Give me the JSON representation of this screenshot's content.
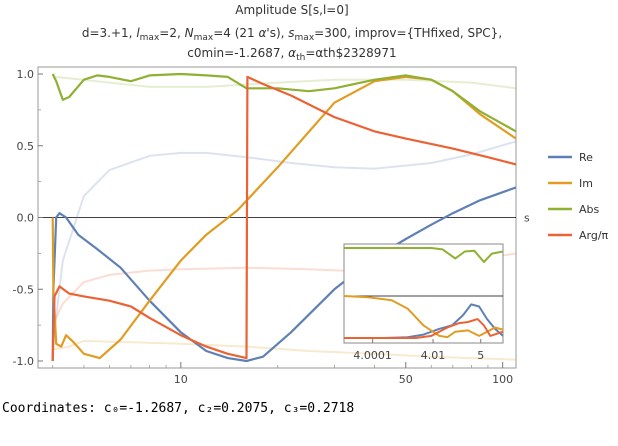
{
  "chart_data": {
    "type": "line",
    "title": "Amplitude S[s,l=0]",
    "subtitle_lines": [
      "d=3.+1, l_max=2, N_max=4 (21 α's), s_max=300, improv={THfixed, SPC},",
      "c0min=-1.2687, α_th=αth$2328971"
    ],
    "xlabel": "s",
    "ylabel": "",
    "x_scale": "log",
    "xlim": [
      3.6,
      110
    ],
    "ylim": [
      -1.05,
      1.05
    ],
    "x_tick_labels": [
      "10",
      "50",
      "100"
    ],
    "y_tick_labels": [
      "1.0",
      "0.5",
      "0.0",
      "-0.5",
      "-1.0"
    ],
    "legend_position": "right",
    "colors": {
      "Re": "#5e81b5",
      "Im": "#e19c24",
      "Abs": "#8fb032",
      "Arg": "#eb6235",
      "zero_line": "#000000"
    },
    "series": [
      {
        "name": "Re",
        "points": [
          [
            4.0001,
            -1.0
          ],
          [
            4.02,
            -0.5
          ],
          [
            4.1,
            0.0
          ],
          [
            4.2,
            0.03
          ],
          [
            4.4,
            0.0
          ],
          [
            4.8,
            -0.12
          ],
          [
            5.5,
            -0.22
          ],
          [
            6.5,
            -0.35
          ],
          [
            8,
            -0.58
          ],
          [
            10,
            -0.8
          ],
          [
            12,
            -0.93
          ],
          [
            14,
            -0.98
          ],
          [
            16,
            -1.0
          ],
          [
            18,
            -0.97
          ],
          [
            22,
            -0.8
          ],
          [
            30,
            -0.5
          ],
          [
            40,
            -0.28
          ],
          [
            50,
            -0.15
          ],
          [
            60,
            -0.05
          ],
          [
            70,
            0.03
          ],
          [
            85,
            0.12
          ],
          [
            110,
            0.21
          ]
        ]
      },
      {
        "name": "Im",
        "points": [
          [
            4.0001,
            0.0
          ],
          [
            4.02,
            -0.5
          ],
          [
            4.1,
            -0.88
          ],
          [
            4.25,
            -0.9
          ],
          [
            4.4,
            -0.82
          ],
          [
            4.6,
            -0.86
          ],
          [
            5,
            -0.95
          ],
          [
            5.6,
            -0.98
          ],
          [
            6.5,
            -0.85
          ],
          [
            8,
            -0.58
          ],
          [
            10,
            -0.3
          ],
          [
            12,
            -0.12
          ],
          [
            15,
            0.05
          ],
          [
            20,
            0.35
          ],
          [
            30,
            0.8
          ],
          [
            40,
            0.95
          ],
          [
            50,
            0.98
          ],
          [
            60,
            0.96
          ],
          [
            70,
            0.88
          ],
          [
            85,
            0.72
          ],
          [
            110,
            0.55
          ]
        ]
      },
      {
        "name": "Abs",
        "points": [
          [
            4.0001,
            1.0
          ],
          [
            4.1,
            0.95
          ],
          [
            4.3,
            0.82
          ],
          [
            4.5,
            0.84
          ],
          [
            5,
            0.96
          ],
          [
            5.5,
            0.99
          ],
          [
            6,
            0.98
          ],
          [
            7,
            0.95
          ],
          [
            8,
            0.99
          ],
          [
            10,
            1.0
          ],
          [
            12,
            0.99
          ],
          [
            14,
            0.98
          ],
          [
            16,
            0.9
          ],
          [
            20,
            0.9
          ],
          [
            25,
            0.88
          ],
          [
            30,
            0.9
          ],
          [
            40,
            0.96
          ],
          [
            50,
            0.99
          ],
          [
            60,
            0.96
          ],
          [
            70,
            0.88
          ],
          [
            85,
            0.74
          ],
          [
            110,
            0.6
          ]
        ]
      },
      {
        "name": "Arg/π",
        "points": [
          [
            4.0001,
            -1.0
          ],
          [
            4.05,
            -0.55
          ],
          [
            4.2,
            -0.48
          ],
          [
            4.5,
            -0.53
          ],
          [
            5,
            -0.55
          ],
          [
            6,
            -0.58
          ],
          [
            7,
            -0.62
          ],
          [
            8,
            -0.7
          ],
          [
            10,
            -0.82
          ],
          [
            12,
            -0.9
          ],
          [
            14,
            -0.95
          ],
          [
            16,
            -0.98
          ],
          [
            16.1,
            0.98
          ],
          [
            18,
            0.93
          ],
          [
            22,
            0.85
          ],
          [
            30,
            0.7
          ],
          [
            40,
            0.6
          ],
          [
            50,
            0.55
          ],
          [
            70,
            0.48
          ],
          [
            90,
            0.42
          ],
          [
            110,
            0.37
          ]
        ]
      }
    ],
    "faded_series": [
      {
        "name": "Re",
        "points": [
          [
            4.0001,
            -0.9
          ],
          [
            4.3,
            -0.3
          ],
          [
            5,
            0.15
          ],
          [
            6,
            0.33
          ],
          [
            8,
            0.43
          ],
          [
            10,
            0.45
          ],
          [
            12,
            0.45
          ],
          [
            16,
            0.42
          ],
          [
            22,
            0.38
          ],
          [
            30,
            0.35
          ],
          [
            40,
            0.34
          ],
          [
            60,
            0.38
          ],
          [
            80,
            0.44
          ],
          [
            110,
            0.53
          ]
        ]
      },
      {
        "name": "Im",
        "points": [
          [
            4.0001,
            -0.92
          ],
          [
            4.5,
            -0.9
          ],
          [
            5,
            -0.86
          ],
          [
            7,
            -0.87
          ],
          [
            10,
            -0.88
          ],
          [
            16,
            -0.9
          ],
          [
            25,
            -0.93
          ],
          [
            40,
            -0.95
          ],
          [
            60,
            -0.97
          ],
          [
            110,
            -0.99
          ]
        ]
      },
      {
        "name": "Abs",
        "points": [
          [
            4.0001,
            0.98
          ],
          [
            4.5,
            0.97
          ],
          [
            6,
            0.94
          ],
          [
            8,
            0.91
          ],
          [
            12,
            0.91
          ],
          [
            20,
            0.94
          ],
          [
            30,
            0.96
          ],
          [
            50,
            0.96
          ],
          [
            80,
            0.94
          ],
          [
            110,
            0.9
          ]
        ]
      },
      {
        "name": "Arg/π",
        "points": [
          [
            4.0001,
            -0.75
          ],
          [
            4.3,
            -0.6
          ],
          [
            5,
            -0.45
          ],
          [
            6,
            -0.4
          ],
          [
            8,
            -0.37
          ],
          [
            10,
            -0.36
          ],
          [
            16,
            -0.35
          ],
          [
            25,
            -0.36
          ],
          [
            40,
            -0.38
          ],
          [
            60,
            -0.36
          ],
          [
            80,
            -0.3
          ],
          [
            110,
            -0.25
          ]
        ]
      }
    ],
    "inset": {
      "x_tick_labels": [
        "4.0001",
        "4.01",
        "5"
      ],
      "series": [
        {
          "name": "Re",
          "points": [
            [
              0,
              -1.0
            ],
            [
              0.25,
              -1.0
            ],
            [
              0.4,
              -0.98
            ],
            [
              0.5,
              -0.92
            ],
            [
              0.6,
              -0.78
            ],
            [
              0.68,
              -0.7
            ],
            [
              0.75,
              -0.45
            ],
            [
              0.8,
              -0.2
            ],
            [
              0.85,
              -0.25
            ],
            [
              0.9,
              -0.55
            ],
            [
              0.95,
              -0.78
            ],
            [
              1,
              -0.95
            ]
          ]
        },
        {
          "name": "Im",
          "points": [
            [
              0,
              0.0
            ],
            [
              0.15,
              -0.03
            ],
            [
              0.3,
              -0.1
            ],
            [
              0.4,
              -0.3
            ],
            [
              0.5,
              -0.7
            ],
            [
              0.6,
              -0.95
            ],
            [
              0.65,
              -0.98
            ],
            [
              0.7,
              -0.85
            ],
            [
              0.78,
              -0.82
            ],
            [
              0.85,
              -0.95
            ],
            [
              0.9,
              -0.85
            ],
            [
              0.95,
              -0.75
            ],
            [
              1,
              -0.8
            ]
          ]
        },
        {
          "name": "Abs",
          "points": [
            [
              0,
              1.0
            ],
            [
              0.55,
              1.0
            ],
            [
              0.62,
              0.98
            ],
            [
              0.7,
              0.85
            ],
            [
              0.76,
              0.95
            ],
            [
              0.82,
              0.96
            ],
            [
              0.88,
              0.8
            ],
            [
              0.93,
              0.92
            ],
            [
              1,
              0.95
            ]
          ]
        },
        {
          "name": "Arg/π",
          "points": [
            [
              0,
              -1.0
            ],
            [
              0.45,
              -1.0
            ],
            [
              0.55,
              -0.95
            ],
            [
              0.65,
              -0.75
            ],
            [
              0.72,
              -0.65
            ],
            [
              0.78,
              -0.62
            ],
            [
              0.84,
              -0.55
            ],
            [
              0.88,
              -0.7
            ],
            [
              0.92,
              -0.95
            ],
            [
              0.96,
              -0.9
            ],
            [
              1,
              -0.85
            ]
          ]
        }
      ]
    }
  },
  "coordinates_line": "Coordinates: c₀=-1.2687, c₂=0.2075, c₃=0.2718"
}
